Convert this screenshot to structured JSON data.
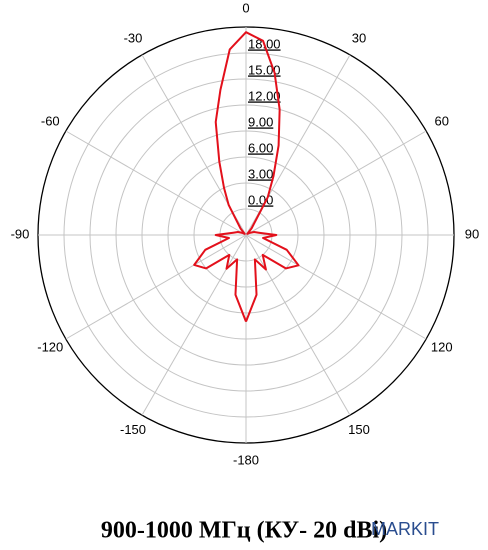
{
  "chart_data": {
    "type": "polar",
    "title": "900-1000 МГц (КУ- 20 dBi)",
    "watermark": "MARKIT",
    "rlim": [
      -3,
      21
    ],
    "rticks": [
      {
        "value": 0,
        "label": "0.00"
      },
      {
        "value": 3,
        "label": "3.00"
      },
      {
        "value": 6,
        "label": "6.00"
      },
      {
        "value": 9,
        "label": "9.00"
      },
      {
        "value": 12,
        "label": "12.00"
      },
      {
        "value": 15,
        "label": "15.00"
      },
      {
        "value": 18,
        "label": "18.00"
      }
    ],
    "thetaticks": [
      -180,
      -150,
      -120,
      -90,
      -60,
      -30,
      0,
      30,
      60,
      90,
      120,
      150
    ],
    "series": [
      {
        "color": "#e3101b",
        "x": [
          -180,
          -170,
          -160,
          -150,
          -140,
          -130,
          -120,
          -110,
          -100,
          -90,
          -80,
          -70,
          -60,
          -50,
          -40,
          -30,
          -25,
          -20,
          -15,
          -10,
          -5,
          0,
          5,
          10,
          15,
          20,
          25,
          30,
          40,
          50,
          60,
          70,
          80,
          90,
          100,
          110,
          120,
          130,
          140,
          150,
          160,
          170,
          180
        ],
        "values": [
          7,
          4,
          0,
          1.5,
          0,
          3,
          3.9,
          2,
          -1,
          0.5,
          -1.5,
          -2,
          -2.5,
          -2.8,
          -2,
          1,
          3,
          6,
          10.5,
          14,
          18.5,
          20.4,
          19.5,
          16,
          12,
          8,
          4.5,
          2,
          -2,
          -2.8,
          -2.5,
          -2,
          -1.5,
          0.5,
          -1,
          2,
          4,
          3,
          0,
          1.6,
          0,
          4,
          7
        ]
      }
    ]
  }
}
